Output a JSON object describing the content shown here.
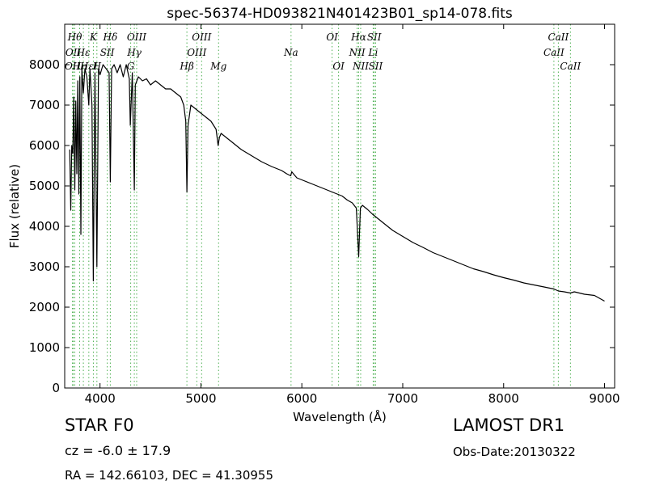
{
  "chart_data": {
    "type": "line",
    "title": "spec-56374-HD093821N401423B01_sp14-078.fits",
    "xlabel": "Wavelength (Å)",
    "ylabel": "Flux (relative)",
    "xlim": [
      3650,
      9100
    ],
    "ylim": [
      0,
      9000
    ],
    "xticks": [
      4000,
      5000,
      6000,
      7000,
      8000,
      9000
    ],
    "yticks": [
      0,
      1000,
      2000,
      3000,
      4000,
      5000,
      6000,
      7000,
      8000
    ],
    "grid": false,
    "series": [
      {
        "color": "#000000",
        "x": [
          3700,
          3710,
          3720,
          3730,
          3740,
          3750,
          3760,
          3770,
          3780,
          3790,
          3800,
          3810,
          3820,
          3835,
          3850,
          3870,
          3889,
          3900,
          3920,
          3934,
          3950,
          3969,
          3985,
          4000,
          4030,
          4060,
          4090,
          4102,
          4115,
          4140,
          4170,
          4200,
          4230,
          4260,
          4290,
          4300,
          4320,
          4340,
          4350,
          4380,
          4420,
          4460,
          4500,
          4550,
          4600,
          4650,
          4700,
          4750,
          4800,
          4830,
          4850,
          4861,
          4872,
          4900,
          4950,
          5000,
          5050,
          5100,
          5150,
          5170,
          5183,
          5200,
          5250,
          5300,
          5400,
          5500,
          5600,
          5700,
          5800,
          5850,
          5890,
          5900,
          5950,
          6000,
          6100,
          6200,
          6300,
          6400,
          6450,
          6500,
          6540,
          6563,
          6580,
          6600,
          6650,
          6700,
          6800,
          6900,
          7000,
          7100,
          7200,
          7300,
          7400,
          7500,
          7600,
          7700,
          7800,
          7900,
          8000,
          8100,
          8200,
          8300,
          8400,
          8498,
          8542,
          8600,
          8662,
          8700,
          8800,
          8900,
          9000
        ],
        "y": [
          5900,
          4400,
          6000,
          5800,
          7200,
          4900,
          7100,
          5300,
          7600,
          4800,
          7700,
          3800,
          7900,
          7300,
          7900,
          7700,
          7000,
          7900,
          7000,
          2650,
          7800,
          3000,
          7900,
          7750,
          8000,
          7900,
          7800,
          5100,
          7900,
          8000,
          7800,
          8000,
          7700,
          8000,
          7650,
          6500,
          7800,
          4900,
          7500,
          7700,
          7600,
          7650,
          7500,
          7600,
          7500,
          7400,
          7400,
          7300,
          7200,
          7000,
          6600,
          4850,
          6500,
          7000,
          6900,
          6800,
          6700,
          6600,
          6400,
          6000,
          6200,
          6300,
          6200,
          6100,
          5900,
          5750,
          5600,
          5480,
          5380,
          5300,
          5250,
          5350,
          5200,
          5150,
          5050,
          4950,
          4850,
          4750,
          4650,
          4580,
          4450,
          3250,
          4450,
          4520,
          4420,
          4300,
          4100,
          3900,
          3750,
          3600,
          3480,
          3350,
          3250,
          3150,
          3050,
          2950,
          2880,
          2800,
          2730,
          2670,
          2600,
          2550,
          2500,
          2450,
          2400,
          2380,
          2350,
          2380,
          2320,
          2290,
          2150
        ]
      }
    ],
    "lines": [
      {
        "x": 3727,
        "labels": [
          "OII"
        ],
        "tiers": [
          2
        ]
      },
      {
        "x": 3734,
        "labels": [
          "OII"
        ],
        "tiers": [
          1
        ]
      },
      {
        "x": 3750,
        "labels": [
          "Hθ"
        ],
        "tiers": [
          0
        ]
      },
      {
        "x": 3798,
        "labels": [
          "Hη"
        ],
        "tiers": [
          2
        ]
      },
      {
        "x": 3835,
        "labels": [
          "Hε"
        ],
        "tiers": [
          1
        ]
      },
      {
        "x": 3889,
        "labels": [
          "HεI"
        ],
        "tiers": [
          2
        ]
      },
      {
        "x": 3934,
        "labels": [
          "K"
        ],
        "tiers": [
          0
        ]
      },
      {
        "x": 3969,
        "labels": [
          "H"
        ],
        "tiers": [
          2
        ]
      },
      {
        "x": 4072,
        "labels": [
          "SII"
        ],
        "tiers": [
          1
        ]
      },
      {
        "x": 4102,
        "labels": [
          "Hδ"
        ],
        "tiers": [
          0
        ]
      },
      {
        "x": 4304,
        "labels": [
          "G"
        ],
        "tiers": [
          2
        ]
      },
      {
        "x": 4340,
        "labels": [
          "Hγ"
        ],
        "tiers": [
          1
        ]
      },
      {
        "x": 4363,
        "labels": [
          "OIII"
        ],
        "tiers": [
          0
        ]
      },
      {
        "x": 4861,
        "labels": [
          "Hβ"
        ],
        "tiers": [
          2
        ]
      },
      {
        "x": 4959,
        "labels": [
          "OIII"
        ],
        "tiers": [
          1
        ]
      },
      {
        "x": 5007,
        "labels": [
          "OIII"
        ],
        "tiers": [
          0
        ]
      },
      {
        "x": 5175,
        "labels": [
          "Mg"
        ],
        "tiers": [
          2
        ]
      },
      {
        "x": 5893,
        "labels": [
          "Na"
        ],
        "tiers": [
          1
        ]
      },
      {
        "x": 6300,
        "labels": [
          "OI"
        ],
        "tiers": [
          0
        ]
      },
      {
        "x": 6364,
        "labels": [
          "OI"
        ],
        "tiers": [
          2
        ]
      },
      {
        "x": 6548,
        "labels": [
          "NII"
        ],
        "tiers": [
          1
        ]
      },
      {
        "x": 6563,
        "labels": [
          "Hα"
        ],
        "tiers": [
          0
        ]
      },
      {
        "x": 6583,
        "labels": [
          "NII"
        ],
        "tiers": [
          2
        ]
      },
      {
        "x": 6707,
        "labels": [
          "Li"
        ],
        "tiers": [
          1
        ]
      },
      {
        "x": 6717,
        "labels": [
          "SII"
        ],
        "tiers": [
          0
        ]
      },
      {
        "x": 6731,
        "labels": [
          "SII"
        ],
        "tiers": [
          2
        ]
      },
      {
        "x": 8498,
        "labels": [
          "CaII"
        ],
        "tiers": [
          1
        ]
      },
      {
        "x": 8542,
        "labels": [
          "CaII"
        ],
        "tiers": [
          0
        ]
      },
      {
        "x": 8662,
        "labels": [
          "CaII"
        ],
        "tiers": [
          2
        ]
      }
    ],
    "line_color": "#4caf50"
  },
  "info": {
    "object": "STAR   F0",
    "survey": "LAMOST DR1",
    "cz": "cz = -6.0  ± 17.9",
    "obs_date": "Obs-Date:20130322",
    "coords": "RA = 142.66103, DEC = 41.30955"
  }
}
